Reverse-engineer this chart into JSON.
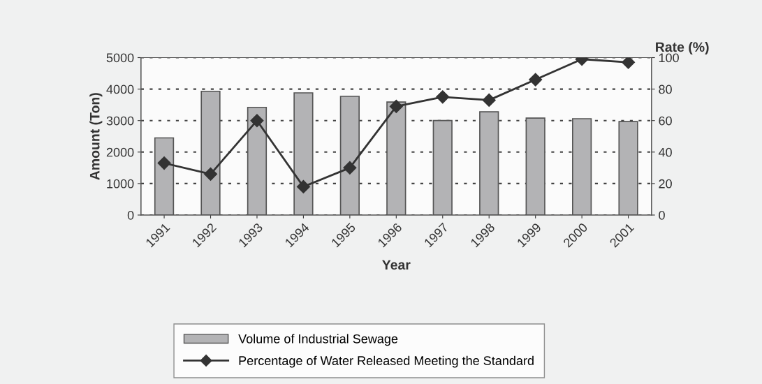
{
  "chart_data": {
    "type": "bar",
    "xlabel": "Year",
    "ylabel": "Amount (Ton)",
    "y2label": "Rate (%)",
    "categories": [
      "1991",
      "1992",
      "1993",
      "1994",
      "1995",
      "1996",
      "1997",
      "1998",
      "1999",
      "2000",
      "2001"
    ],
    "series": [
      {
        "name": "Volume of Industrial Sewage",
        "color": "#b3b3b5",
        "values": [
          2450,
          3930,
          3420,
          3880,
          3770,
          3590,
          3000,
          3280,
          3080,
          3060,
          2970
        ]
      },
      {
        "name": "Percentage of Water Released Meeting the Standard",
        "type": "line",
        "axis": "y2",
        "color": "#333333",
        "marker": "diamond",
        "values": [
          33,
          26,
          60,
          18,
          30,
          69,
          75,
          73,
          86,
          99,
          97
        ]
      }
    ],
    "ylim": [
      0,
      5000
    ],
    "yticks": [
      0,
      1000,
      2000,
      3000,
      4000,
      5000
    ],
    "y2lim": [
      0,
      100
    ],
    "y2ticks": [
      0,
      20,
      40,
      60,
      80,
      100
    ],
    "grid": "y",
    "legend": "bottom"
  }
}
